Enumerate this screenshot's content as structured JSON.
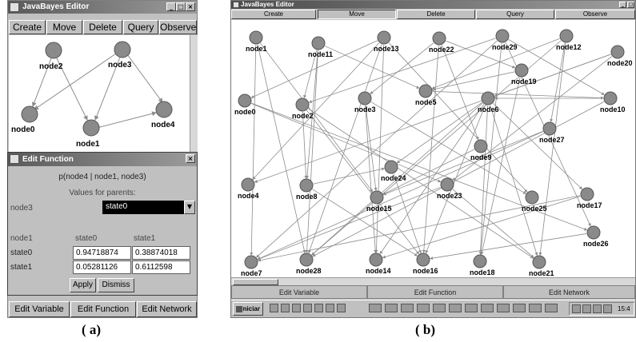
{
  "panel_a": {
    "title": "JavaBayes Editor",
    "toolbar": [
      "Create",
      "Move",
      "Delete",
      "Query",
      "Observe"
    ],
    "nodes": [
      "node2",
      "node3",
      "node0",
      "node1",
      "node4"
    ],
    "bottom_buttons": [
      "Edit Variable",
      "Edit Function",
      "Edit Network"
    ],
    "caption": "( a)"
  },
  "dialog": {
    "title": "Edit Function",
    "prob_label": "p(node4 | node1, node3)",
    "values_label": "Values for parents:",
    "parent_name": "node3",
    "parent_value": "state0",
    "table": {
      "col_header_0": "node1",
      "col_header_1": "state0",
      "col_header_2": "state1",
      "rows": [
        {
          "label": "state0",
          "v0": "0.94718874",
          "v1": "0.38874018"
        },
        {
          "label": "state1",
          "v0": "0.05281126",
          "v1": "0.6112598"
        }
      ]
    },
    "apply_label": "Apply",
    "dismiss_label": "Dismiss"
  },
  "panel_b": {
    "title": "JavaBayes Editor",
    "toolbar": [
      "Create",
      "Move",
      "Delete",
      "Query",
      "Observe"
    ],
    "nodes": [
      "node1",
      "node11",
      "node13",
      "node22",
      "node29",
      "node12",
      "node20",
      "node19",
      "node0",
      "node2",
      "node3",
      "node5",
      "node6",
      "node10",
      "node27",
      "node9",
      "node24",
      "node4",
      "node8",
      "node15",
      "node23",
      "node25",
      "node17",
      "node26",
      "node7",
      "node28",
      "node14",
      "node16",
      "node18",
      "node21"
    ],
    "bottom_buttons": [
      "Edit Variable",
      "Edit Function",
      "Edit Network"
    ],
    "taskbar_start": "Iniciar",
    "clock": "15:4",
    "caption": "( b)"
  },
  "colors": {
    "node_fill": "#8a8a8a",
    "edge": "#8c8c8c",
    "window_bg": "#c0c0c0"
  },
  "icons": [
    "minimize-icon",
    "maximize-icon",
    "close-icon",
    "dropdown-arrow-icon",
    "windows-start-icon"
  ]
}
